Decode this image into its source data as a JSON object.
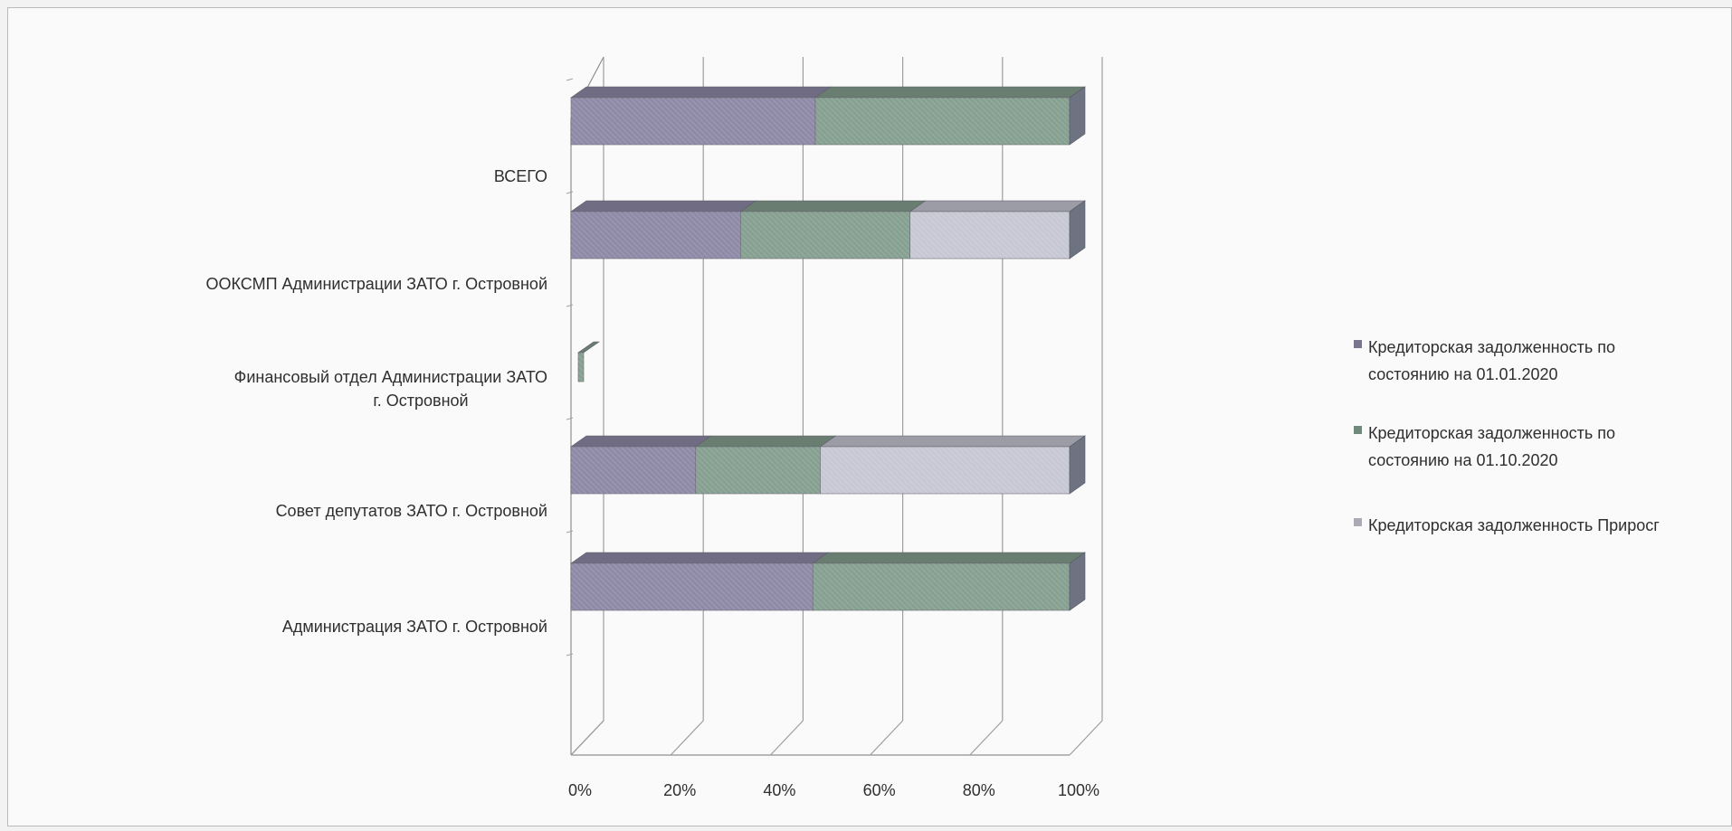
{
  "chart_data": {
    "type": "bar",
    "orientation": "horizontal",
    "stacked": "percent",
    "three_d": true,
    "categories": [
      [
        "Администрация ЗАТО г. Островной"
      ],
      [
        "Совет депутатов ЗАТО  г. Островной"
      ],
      [
        "Финансовый отдел  Администрации  ЗАТО",
        "г. Островной"
      ],
      [
        "ООКСМП Администрации ЗАТО г. Островной"
      ],
      [
        "ВСЕГО"
      ]
    ],
    "series": [
      {
        "name": "Кредиторская задолженность по состоянию на  01.01.2020",
        "legend_lines": [
          "Кредиторская задолженность по",
          "состоянию на  01.01.2020"
        ],
        "color": "#8e8aa8",
        "values": [
          48.5,
          25,
          0,
          34,
          49
        ]
      },
      {
        "name": "Кредиторская задолженность по состоянию на  01.10.2020",
        "legend_lines": [
          "Кредиторская задолженность по",
          "состоянию на  01.10.2020"
        ],
        "color": "#86a091",
        "values": [
          51.5,
          25,
          3,
          34,
          51
        ]
      },
      {
        "name": "Кредиторская задолженность  Прирост",
        "legend_lines": [
          "Кредиторская задолженность  Приросг"
        ],
        "color": "#c7c8d3",
        "values": [
          0,
          50,
          0,
          32,
          0
        ]
      }
    ],
    "x_ticks": [
      "0%",
      "20%",
      "40%",
      "60%",
      "80%",
      "100%"
    ],
    "xlim": [
      0,
      100
    ],
    "grid": true,
    "legend_position": "right"
  }
}
